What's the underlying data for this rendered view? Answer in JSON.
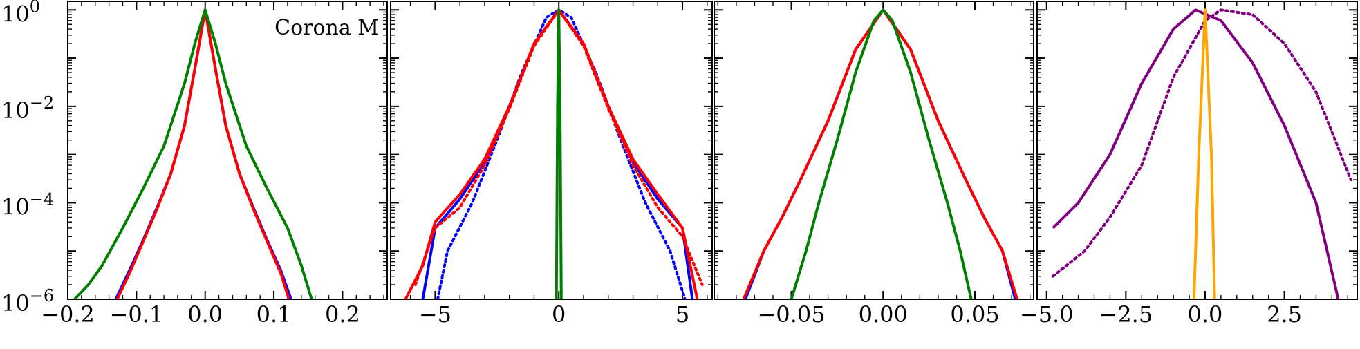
{
  "figure": {
    "y_scale": "log",
    "ylim": [
      1e-06,
      1.5
    ],
    "y_ticks": [
      {
        "base": "10",
        "exp": "0",
        "value": 1
      },
      {
        "base": "10",
        "exp": "−2",
        "value": 0.01
      },
      {
        "base": "10",
        "exp": "−4",
        "value": 0.0001
      },
      {
        "base": "10",
        "exp": "−6",
        "value": 1e-06
      }
    ],
    "colors": {
      "blue": "#0000ff",
      "green": "#008000",
      "red": "#ff0000",
      "purple": "#800080",
      "orange": "#ffa500"
    }
  },
  "chart_data": [
    {
      "type": "line",
      "annotation": "Corona M",
      "xlim": [
        -0.2,
        0.265
      ],
      "x_ticks": [
        {
          "label": "−0.2",
          "value": -0.2
        },
        {
          "label": "−0.1",
          "value": -0.1
        },
        {
          "label": "0.0",
          "value": 0.0
        },
        {
          "label": "0.1",
          "value": 0.1
        },
        {
          "label": "0.2",
          "value": 0.2
        }
      ],
      "series": [
        {
          "color": "#0000ff",
          "style": "solid",
          "x": [
            -0.13,
            -0.11,
            -0.09,
            -0.07,
            -0.05,
            -0.03,
            -0.015,
            0,
            0.015,
            0.03,
            0.05,
            0.07,
            0.09,
            0.11,
            0.125
          ],
          "y": [
            1e-06,
            4e-06,
            1.7e-05,
            8e-05,
            0.0004,
            0.004,
            0.06,
            1,
            0.06,
            0.004,
            0.0004,
            8e-05,
            1.7e-05,
            4e-06,
            1e-06
          ]
        },
        {
          "color": "#ff0000",
          "style": "solid",
          "x": [
            -0.128,
            -0.11,
            -0.09,
            -0.07,
            -0.05,
            -0.03,
            -0.015,
            0,
            0.015,
            0.03,
            0.05,
            0.07,
            0.09,
            0.11,
            0.122
          ],
          "y": [
            1e-06,
            3.5e-06,
            1.6e-05,
            7.5e-05,
            0.0004,
            0.004,
            0.06,
            1,
            0.06,
            0.004,
            0.0004,
            7.5e-05,
            1.6e-05,
            3.5e-06,
            1e-06
          ]
        },
        {
          "color": "#008000",
          "style": "solid",
          "x": [
            -0.19,
            -0.17,
            -0.15,
            -0.12,
            -0.09,
            -0.06,
            -0.03,
            -0.015,
            0,
            0.015,
            0.03,
            0.06,
            0.09,
            0.12,
            0.14,
            0.155
          ],
          "y": [
            1e-06,
            2e-06,
            5e-06,
            3e-05,
            0.0002,
            0.0015,
            0.03,
            0.2,
            1,
            0.2,
            0.03,
            0.0015,
            0.0002,
            3e-05,
            5e-06,
            1e-06
          ]
        }
      ]
    },
    {
      "type": "line",
      "xlim": [
        -6.8,
        6.2
      ],
      "x_ticks": [
        {
          "label": "−5",
          "value": -5
        },
        {
          "label": "0",
          "value": 0
        },
        {
          "label": "5",
          "value": 5
        }
      ],
      "series": [
        {
          "color": "#0000ff",
          "style": "solid",
          "x": [
            -5.5,
            -5,
            -4,
            -3,
            -2,
            -1,
            0,
            1,
            2,
            3,
            4,
            5,
            5.4
          ],
          "y": [
            1e-06,
            3e-05,
            0.00012,
            0.0007,
            0.01,
            0.2,
            1,
            0.2,
            0.01,
            0.0007,
            0.00012,
            3e-05,
            1e-06
          ]
        },
        {
          "color": "#0000ff",
          "style": "dotted",
          "x": [
            -4.9,
            -4.5,
            -3.5,
            -2.5,
            -1.5,
            -0.5,
            0,
            0.5,
            1.5,
            2.5,
            3.5,
            4.5,
            5.1
          ],
          "y": [
            1e-06,
            1e-05,
            0.0001,
            0.002,
            0.05,
            0.7,
            1,
            0.7,
            0.05,
            0.002,
            0.0001,
            1e-05,
            1e-06
          ]
        },
        {
          "color": "#ff0000",
          "style": "solid",
          "x": [
            -6.2,
            -5.5,
            -5,
            -4,
            -3,
            -2,
            -1,
            0,
            1,
            2,
            3,
            4,
            5,
            5.6
          ],
          "y": [
            1e-06,
            5e-06,
            4e-05,
            0.00015,
            0.0008,
            0.01,
            0.2,
            1,
            0.2,
            0.01,
            0.0008,
            0.00015,
            3e-05,
            1e-06
          ]
        },
        {
          "color": "#ff0000",
          "style": "dotted",
          "x": [
            -5.8,
            -5,
            -4,
            -3,
            -2,
            -1,
            0,
            1,
            2,
            3,
            4,
            5,
            5.8
          ],
          "y": [
            2e-06,
            3e-05,
            8e-05,
            0.0006,
            0.009,
            0.18,
            1,
            0.18,
            0.009,
            0.0006,
            8e-05,
            2e-05,
            2e-06
          ]
        },
        {
          "color": "#008000",
          "style": "solid",
          "x": [
            -0.1,
            -0.05,
            0,
            0.05,
            0.1
          ],
          "y": [
            1e-06,
            0.01,
            1,
            0.01,
            1e-06
          ]
        }
      ]
    },
    {
      "type": "line",
      "xlim": [
        -0.092,
        0.082
      ],
      "x_ticks": [
        {
          "label": "−0.05",
          "value": -0.05
        },
        {
          "label": "0.00",
          "value": 0.0
        },
        {
          "label": "0.05",
          "value": 0.05
        }
      ],
      "series": [
        {
          "color": "#0000ff",
          "style": "solid",
          "x": [
            -0.075,
            -0.065,
            -0.055,
            -0.045,
            -0.03,
            -0.015,
            0,
            0.015,
            0.03,
            0.045,
            0.055,
            0.065,
            0.072
          ],
          "y": [
            1e-06,
            1e-05,
            5e-05,
            0.0003,
            0.005,
            0.15,
            1,
            0.15,
            0.005,
            0.0003,
            5e-05,
            1e-05,
            1e-06
          ]
        },
        {
          "color": "#ff0000",
          "style": "solid",
          "x": [
            -0.076,
            -0.065,
            -0.055,
            -0.045,
            -0.03,
            -0.015,
            0,
            0.015,
            0.03,
            0.045,
            0.055,
            0.065,
            0.073
          ],
          "y": [
            1e-06,
            1e-05,
            5e-05,
            0.0003,
            0.005,
            0.15,
            1,
            0.15,
            0.005,
            0.0003,
            5e-05,
            1e-05,
            1e-06
          ]
        },
        {
          "color": "#008000",
          "style": "solid",
          "x": [
            -0.05,
            -0.042,
            -0.035,
            -0.025,
            -0.015,
            -0.005,
            0,
            0.005,
            0.015,
            0.025,
            0.035,
            0.042,
            0.048
          ],
          "y": [
            1e-06,
            1e-05,
            0.0001,
            0.002,
            0.05,
            0.6,
            1,
            0.6,
            0.05,
            0.002,
            0.0001,
            1e-05,
            1e-06
          ]
        }
      ]
    },
    {
      "type": "line",
      "xlim": [
        -5.3,
        4.8
      ],
      "x_ticks": [
        {
          "label": "−5.0",
          "value": -5
        },
        {
          "label": "−2.5",
          "value": -2.5
        },
        {
          "label": "0.0",
          "value": 0
        },
        {
          "label": "2.5",
          "value": 2.5
        }
      ],
      "series": [
        {
          "color": "#800080",
          "style": "solid",
          "x": [
            -4.8,
            -4,
            -3,
            -2,
            -1,
            -0.3,
            0.5,
            1.5,
            2.5,
            3.5,
            4.2
          ],
          "y": [
            3e-05,
            0.0001,
            0.001,
            0.03,
            0.4,
            1,
            0.6,
            0.08,
            0.004,
            0.0001,
            1e-06
          ]
        },
        {
          "color": "#800080",
          "style": "dotted",
          "x": [
            -4.8,
            -3.8,
            -3,
            -2,
            -1,
            0,
            0.5,
            1.5,
            2.5,
            3.5,
            4.6
          ],
          "y": [
            3e-06,
            1e-05,
            5e-05,
            0.0006,
            0.04,
            0.6,
            1,
            0.8,
            0.2,
            0.02,
            0.0003
          ]
        },
        {
          "color": "#ffa500",
          "style": "solid",
          "x": [
            -0.35,
            -0.2,
            0,
            0.2,
            0.3
          ],
          "y": [
            1e-06,
            0.001,
            1,
            0.001,
            1e-06
          ]
        }
      ]
    }
  ]
}
